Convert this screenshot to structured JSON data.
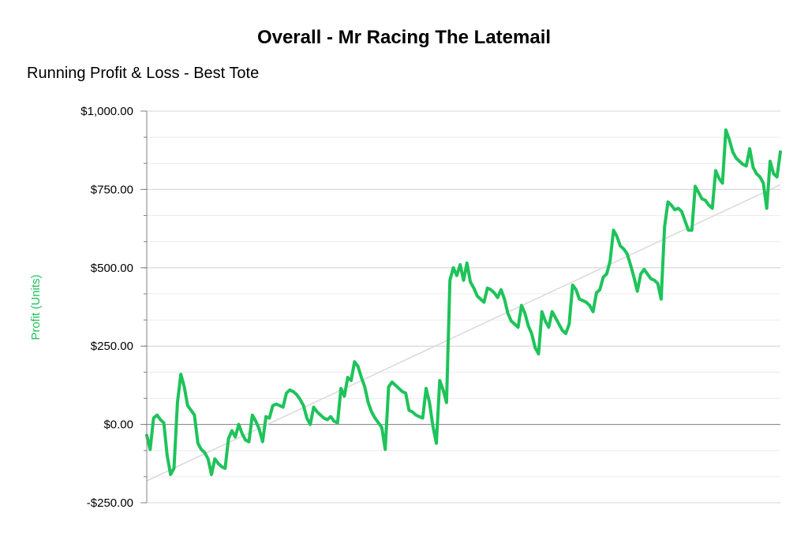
{
  "chart_data": {
    "type": "line",
    "title": "Overall - Mr Racing The Latemail",
    "subtitle": "Running Profit & Loss - Best Tote",
    "xlabel": "",
    "ylabel": "Profit (Units)",
    "ylim": [
      -250,
      1000
    ],
    "yticks": [
      {
        "value": 1000,
        "label": "$1,000.00"
      },
      {
        "value": 750,
        "label": "$750.00"
      },
      {
        "value": 500,
        "label": "$500.00"
      },
      {
        "value": 250,
        "label": "$250.00"
      },
      {
        "value": 0,
        "label": "$0.00"
      },
      {
        "value": -250,
        "label": "-$250.00"
      }
    ],
    "grid": true,
    "legend": "none",
    "colors": {
      "series": "#1ec35a",
      "trend": "#d9d9d9",
      "zero_line": "#808080",
      "ylabel": "#1ec35a"
    },
    "series": [
      {
        "values": [
          -35,
          -80,
          20,
          30,
          15,
          5,
          -100,
          -160,
          -140,
          70,
          160,
          120,
          60,
          45,
          30,
          -60,
          -80,
          -90,
          -110,
          -160,
          -110,
          -125,
          -135,
          -140,
          -45,
          -20,
          -40,
          0,
          -30,
          -50,
          -55,
          30,
          10,
          -15,
          -55,
          25,
          20,
          60,
          65,
          60,
          55,
          100,
          110,
          105,
          95,
          80,
          60,
          20,
          0,
          55,
          40,
          30,
          20,
          15,
          25,
          10,
          5,
          115,
          90,
          150,
          140,
          200,
          185,
          150,
          120,
          70,
          40,
          20,
          5,
          -10,
          -80,
          120,
          135,
          125,
          115,
          105,
          100,
          45,
          40,
          30,
          25,
          20,
          115,
          70,
          -5,
          -60,
          140,
          110,
          70,
          460,
          500,
          475,
          510,
          460,
          515,
          455,
          435,
          410,
          400,
          390,
          435,
          430,
          420,
          405,
          430,
          400,
          355,
          330,
          320,
          310,
          380,
          355,
          315,
          290,
          245,
          225,
          360,
          330,
          310,
          360,
          340,
          320,
          300,
          290,
          320,
          445,
          430,
          400,
          395,
          390,
          380,
          360,
          420,
          430,
          470,
          480,
          520,
          620,
          600,
          570,
          560,
          545,
          510,
          470,
          425,
          480,
          495,
          480,
          465,
          460,
          450,
          400,
          630,
          710,
          700,
          685,
          690,
          680,
          650,
          620,
          620,
          760,
          740,
          720,
          715,
          700,
          690,
          810,
          785,
          770,
          940,
          910,
          870,
          850,
          840,
          830,
          825,
          880,
          820,
          800,
          790,
          770,
          690,
          840,
          800,
          790,
          870
        ]
      }
    ],
    "trend": {
      "start": -180,
      "end": 765
    }
  }
}
